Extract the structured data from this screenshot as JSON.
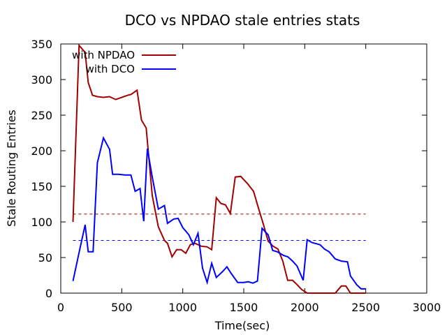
{
  "chart_data": {
    "type": "line",
    "title": "DCO vs NPDAO stale entries stats",
    "xlabel": "Time(sec)",
    "ylabel": "Stale Routing Entries",
    "xlim": [
      0,
      3000
    ],
    "ylim": [
      0,
      350
    ],
    "xticks": [
      0,
      500,
      1000,
      1500,
      2000,
      2500,
      3000
    ],
    "yticks": [
      0,
      50,
      100,
      150,
      200,
      250,
      300,
      350
    ],
    "grid": false,
    "legend_position": "top-left",
    "series": [
      {
        "name": "with NPDAO",
        "color": "#a00000",
        "x": [
          100,
          150,
          200,
          225,
          260,
          300,
          350,
          400,
          450,
          500,
          550,
          575,
          625,
          662,
          700,
          750,
          800,
          850,
          875,
          912,
          950,
          987,
          1025,
          1062,
          1100,
          1150,
          1200,
          1237,
          1275,
          1312,
          1350,
          1390,
          1430,
          1475,
          1530,
          1580,
          1625,
          1662,
          1700,
          1740,
          1780,
          1820,
          1860,
          1900,
          1937,
          1975,
          2020,
          2060,
          2100,
          2150,
          2200,
          2250,
          2300,
          2337,
          2375,
          2425,
          2500
        ],
        "y": [
          100,
          348,
          338,
          296,
          278,
          276,
          275,
          276,
          272,
          275,
          278,
          279,
          285,
          243,
          232,
          137,
          93,
          74,
          70,
          51,
          61,
          61,
          56,
          68,
          70,
          66,
          65,
          61,
          134,
          126,
          124,
          112,
          163,
          164,
          154,
          143,
          117,
          96,
          73,
          66,
          62,
          45,
          18,
          18,
          12,
          5,
          0,
          0,
          0,
          0,
          0,
          0,
          10,
          10,
          0,
          0,
          0
        ]
      },
      {
        "name": "with DCO",
        "color": "#0000ff",
        "x": [
          100,
          150,
          200,
          225,
          265,
          300,
          350,
          400,
          425,
          475,
          525,
          575,
          610,
          650,
          680,
          710,
          750,
          800,
          850,
          875,
          925,
          962,
          1000,
          1050,
          1087,
          1125,
          1162,
          1200,
          1237,
          1275,
          1325,
          1362,
          1400,
          1450,
          1500,
          1537,
          1575,
          1612,
          1650,
          1700,
          1737,
          1775,
          1825,
          1862,
          1900,
          1937,
          1987,
          2020,
          2060,
          2125,
          2162,
          2200,
          2250,
          2300,
          2350,
          2375,
          2425,
          2462,
          2500
        ],
        "y": [
          17,
          57,
          96,
          58,
          58,
          183,
          218,
          202,
          167,
          167,
          166,
          166,
          143,
          147,
          101,
          203,
          163,
          118,
          123,
          98,
          104,
          105,
          92,
          82,
          68,
          84,
          35,
          15,
          42,
          22,
          30,
          37,
          27,
          15,
          15,
          16,
          14,
          17,
          91,
          82,
          60,
          58,
          53,
          51,
          45,
          38,
          18,
          75,
          71,
          68,
          62,
          58,
          48,
          45,
          44,
          24,
          12,
          6,
          6
        ]
      }
    ],
    "reference_lines": [
      {
        "y": 111,
        "color": "#a00000",
        "style": "dashed",
        "x_range": [
          100,
          2500
        ]
      },
      {
        "y": 74,
        "color": "#0000ff",
        "style": "dashed",
        "x_range": [
          100,
          2500
        ]
      }
    ]
  }
}
